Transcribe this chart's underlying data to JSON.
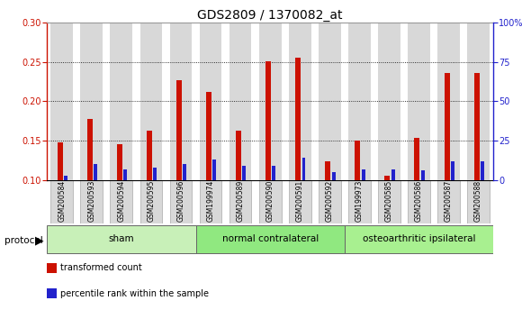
{
  "title": "GDS2809 / 1370082_at",
  "samples": [
    "GSM200584",
    "GSM200593",
    "GSM200594",
    "GSM200595",
    "GSM200596",
    "GSM199974",
    "GSM200589",
    "GSM200590",
    "GSM200591",
    "GSM200592",
    "GSM199973",
    "GSM200585",
    "GSM200586",
    "GSM200587",
    "GSM200588"
  ],
  "red_values": [
    0.148,
    0.178,
    0.146,
    0.163,
    0.227,
    0.212,
    0.163,
    0.251,
    0.255,
    0.124,
    0.15,
    0.106,
    0.154,
    0.236,
    0.236
  ],
  "blue_pct": [
    3,
    10,
    7,
    8,
    10,
    13,
    9,
    9,
    14,
    5,
    7,
    7,
    6,
    12,
    12
  ],
  "groups": [
    {
      "label": "sham",
      "start": 0,
      "end": 5,
      "color": "#c8f0b8"
    },
    {
      "label": "normal contralateral",
      "start": 5,
      "end": 10,
      "color": "#90e880"
    },
    {
      "label": "osteoarthritic ipsilateral",
      "start": 10,
      "end": 15,
      "color": "#a8f090"
    }
  ],
  "ylim_left": [
    0.1,
    0.3
  ],
  "ylim_right": [
    0,
    100
  ],
  "yticks_left": [
    0.1,
    0.15,
    0.2,
    0.25,
    0.3
  ],
  "yticks_right": [
    0,
    25,
    50,
    75,
    100
  ],
  "ytick_labels_right": [
    "0",
    "25",
    "50",
    "75",
    "100%"
  ],
  "red_color": "#cc1100",
  "blue_color": "#2222cc",
  "bar_bg_color": "#d8d8d8",
  "grid_color": "#000000",
  "title_fontsize": 10,
  "tick_fontsize": 7,
  "sample_fontsize": 5.5,
  "legend_red": "transformed count",
  "legend_blue": "percentile rank within the sample"
}
